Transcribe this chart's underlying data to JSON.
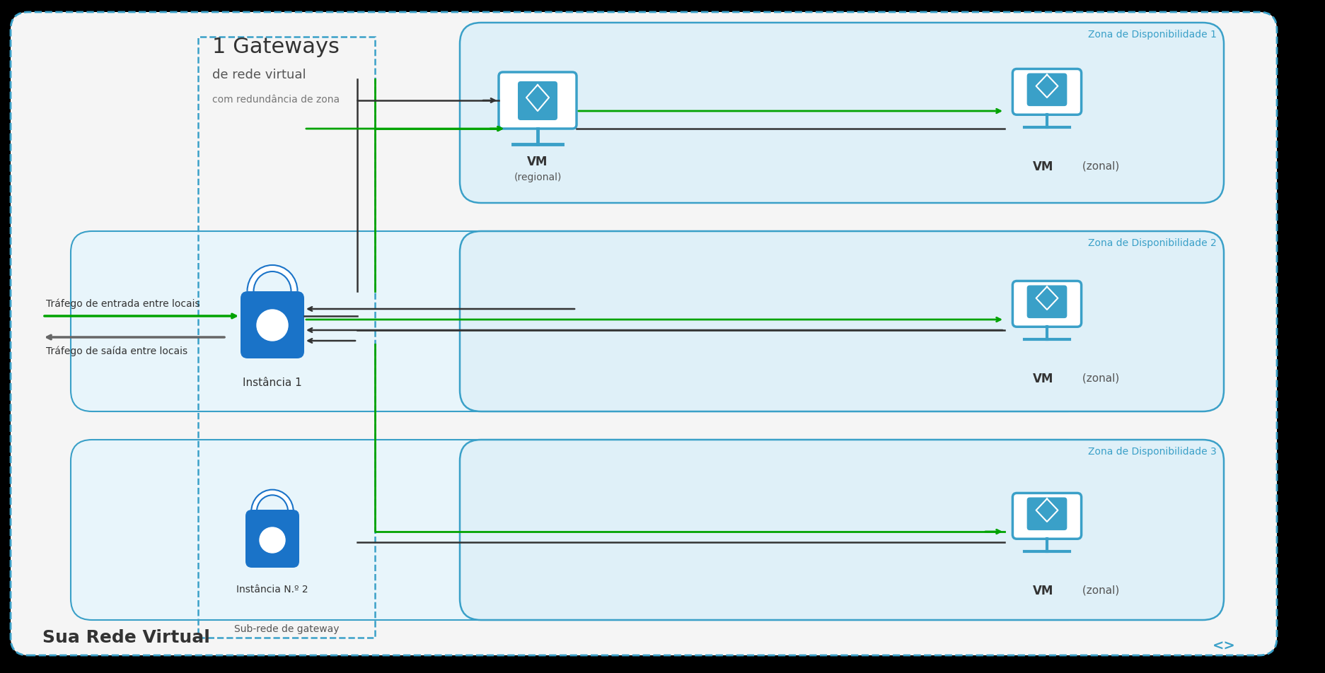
{
  "bg_color": "#f5f5f5",
  "outer_border_color": "#3aa0c8",
  "outer_border_style": "dashed",
  "vnet_label": "Sua Rede Virtual",
  "gateway_subnet_label": "Sub-rede de gateway",
  "title_line1": "1 Gateways",
  "title_line2": "de rede virtual",
  "title_line3": "com redundância de zona",
  "zone_labels": [
    "Zona de Disponibilidade 1",
    "Zona de Disponibilidade 2",
    "Zona de Disponibilidade 3"
  ],
  "zone_border_color": "#3aa0c8",
  "zone_bg_color": "#dff0f8",
  "instance1_label": "Instância 1",
  "instance2_label": "Instância N.º 2",
  "vm_regional_label_bold": "VM",
  "vm_regional_label_normal": "\n(regional)",
  "vm_zonal_label_bold": "VM",
  "vm_zonal_label_normal": " (zonal)",
  "inbound_label": "Tráfego de entrada entre locais",
  "outbound_label": "Tráfego de saída entre locais",
  "lock_color": "#1a73c8",
  "monitor_color": "#3aa0c8",
  "box_color": "#1a73c8",
  "arrow_green": "#00a300",
  "arrow_black": "#333333",
  "inner_box_color": "#c8e8f5",
  "inner_box_bg": "#e8f5fb",
  "gateway_dashed_color": "#3aa0c8"
}
